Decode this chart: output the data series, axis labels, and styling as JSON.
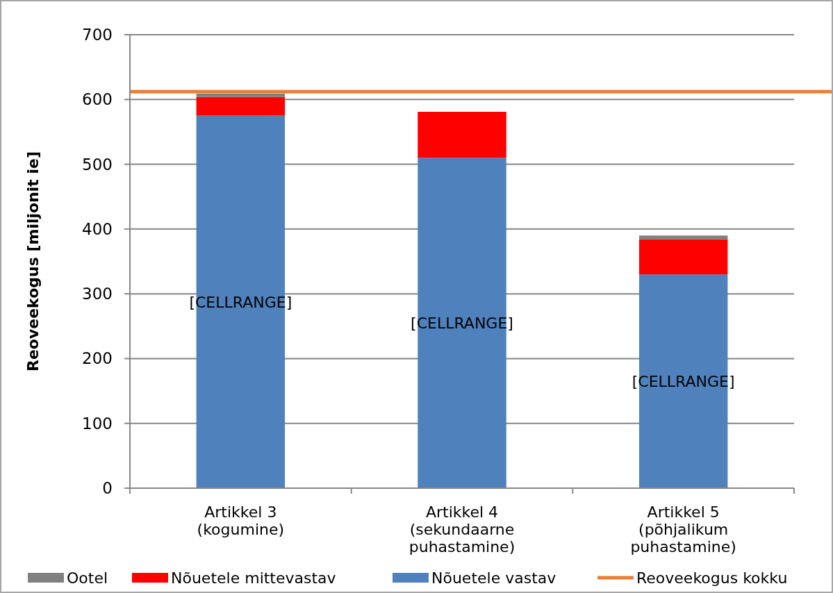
{
  "chart_data": {
    "type": "bar",
    "stacked": true,
    "ylabel": "Reoveekogus [miljonit ie]",
    "categories": [
      "Artikkel 3\n(kogumine)",
      "Artikkel 4\n(sekundaarne\npuhastamine)",
      "Artikkel 5\n(põhjalikum\npuhastamine)"
    ],
    "series": [
      {
        "name": "Nõuetele vastav",
        "color": "#4f81bd",
        "values": [
          575,
          510,
          330
        ],
        "value_labels": [
          "[CELLRANGE]",
          "[CELLRANGE]",
          "[CELLRANGE]"
        ]
      },
      {
        "name": "Nõuetele mittevastav",
        "color": "#ff0000",
        "values": [
          29,
          71,
          54
        ]
      },
      {
        "name": "Ootel",
        "color": "#808080",
        "values": [
          5,
          0,
          6
        ]
      }
    ],
    "ref_lines": [
      {
        "axis": "y",
        "value": 612,
        "label": "Reoveekogus kokku",
        "color": "#ed7d31",
        "line_style": "solid"
      }
    ],
    "ylim": [
      0,
      700
    ],
    "yticks": [
      0,
      100,
      200,
      300,
      400,
      500,
      600,
      700
    ],
    "grid": "y",
    "legend": "bottom"
  }
}
